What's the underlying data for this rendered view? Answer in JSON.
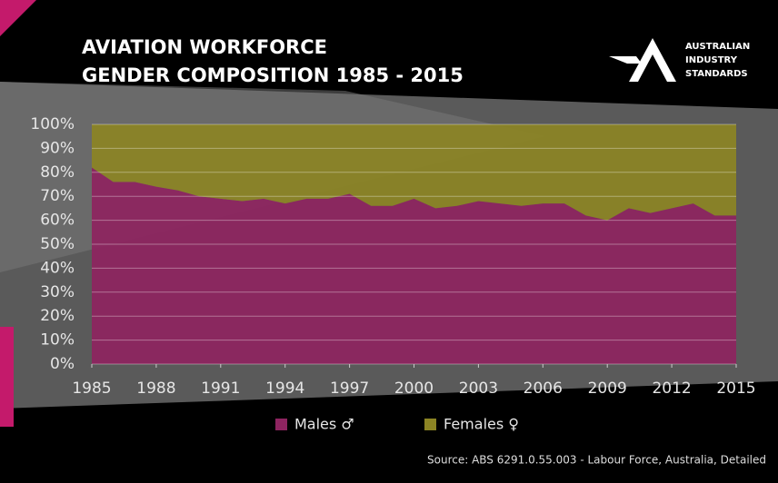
{
  "chart_data": {
    "type": "stacked_area",
    "title": "AVIATION WORKFORCE",
    "subtitle": "GENDER COMPOSITION 1985 - 2015",
    "brand": [
      "AUSTRALIAN",
      "INDUSTRY",
      "STANDARDS"
    ],
    "source": "Source: ABS 6291.0.55.003  - Labour Force, Australia, Detailed",
    "x": [
      1985,
      1986,
      1987,
      1988,
      1989,
      1990,
      1991,
      1992,
      1993,
      1994,
      1995,
      1996,
      1997,
      1998,
      1999,
      2000,
      2001,
      2002,
      2003,
      2004,
      2005,
      2006,
      2007,
      2008,
      2009,
      2010,
      2011,
      2012,
      2013,
      2014,
      2015
    ],
    "series": [
      {
        "name": "Males ♂",
        "color": "#8e2460",
        "values": [
          82,
          76,
          76,
          74,
          72.5,
          70,
          69,
          68,
          69,
          67,
          69,
          69,
          71,
          66,
          66,
          69,
          65,
          66,
          68,
          67,
          66,
          67,
          67,
          62,
          60,
          65,
          63,
          65,
          67,
          62,
          62
        ]
      },
      {
        "name": "Females ♀",
        "color": "#8c8424",
        "values": [
          18,
          24,
          24,
          26,
          27.5,
          30,
          31,
          32,
          31,
          33,
          31,
          31,
          29,
          34,
          34,
          31,
          35,
          34,
          32,
          33,
          34,
          33,
          33,
          38,
          40,
          35,
          37,
          35,
          33,
          38,
          38
        ]
      }
    ],
    "xlim": [
      1985,
      2015
    ],
    "xticks": [
      1985,
      1988,
      1991,
      1994,
      1997,
      2000,
      2003,
      2006,
      2009,
      2012,
      2015
    ],
    "ylim": [
      0,
      100
    ],
    "yticks": [
      {
        "value": 0,
        "label": "0%"
      },
      {
        "value": 10,
        "label": "10%"
      },
      {
        "value": 20,
        "label": "20%"
      },
      {
        "value": 30,
        "label": "30%"
      },
      {
        "value": 40,
        "label": "40%"
      },
      {
        "value": 50,
        "label": "50%"
      },
      {
        "value": 60,
        "label": "60%"
      },
      {
        "value": 70,
        "label": "70%"
      },
      {
        "value": 80,
        "label": "80%"
      },
      {
        "value": 90,
        "label": "90%"
      },
      {
        "value": 100,
        "label": "100%"
      }
    ],
    "grid": true,
    "legend": "bottom"
  }
}
